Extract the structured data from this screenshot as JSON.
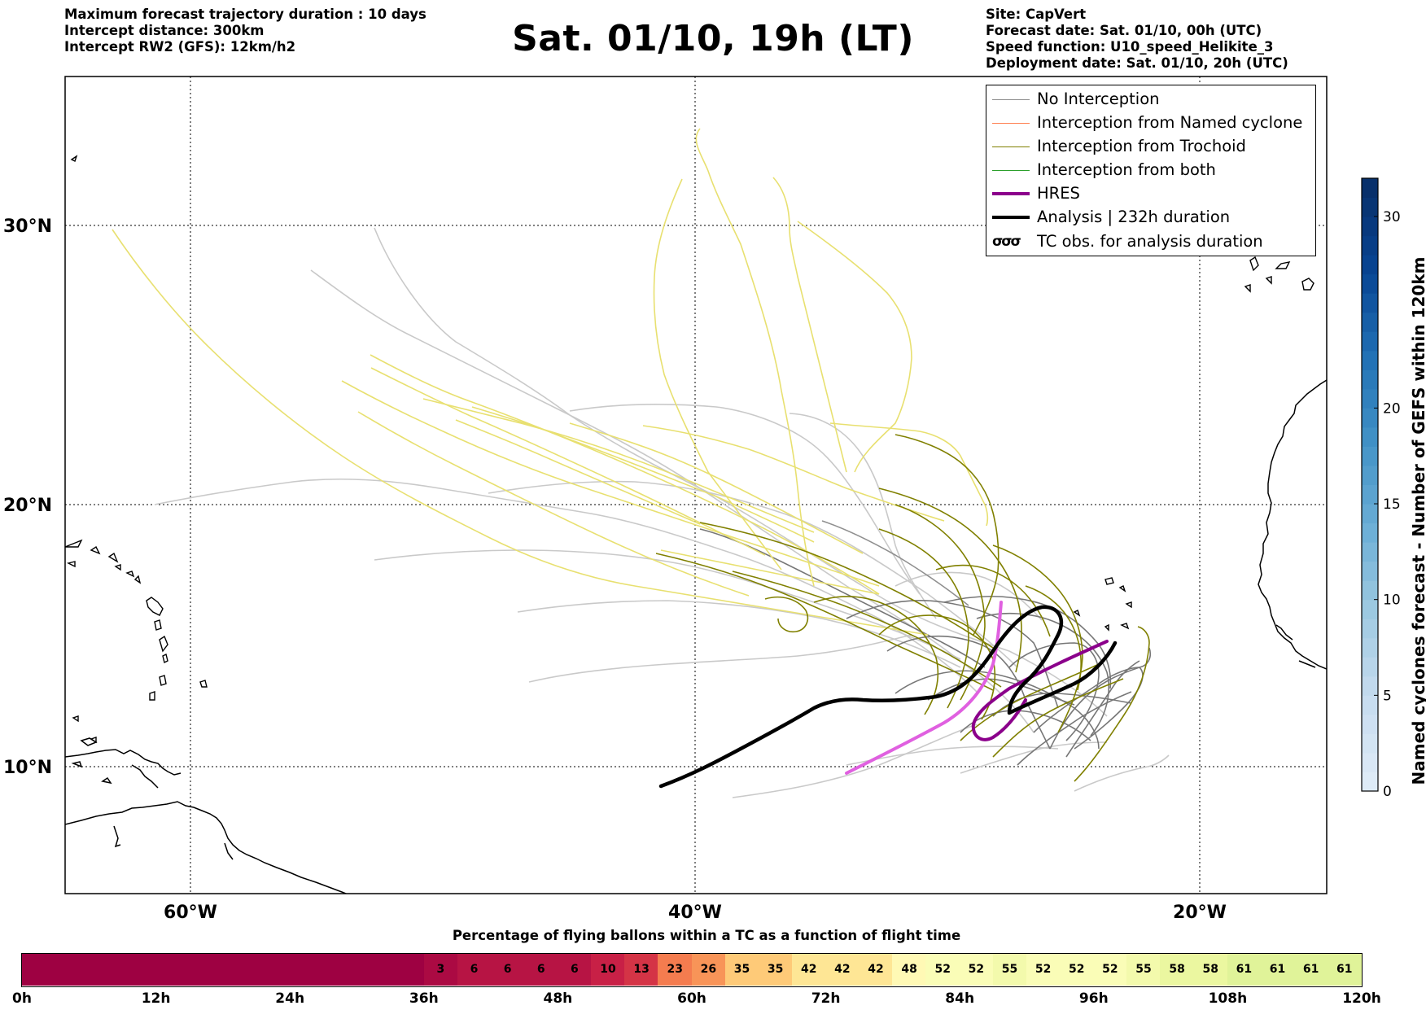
{
  "header_left": [
    "Maximum forecast trajectory duration : 10 days",
    "Intercept distance: 300km",
    "Intercept RW2 (GFS):  12km/h2"
  ],
  "title": "Sat. 01/10, 19h (LT)",
  "header_right": [
    "Site: CapVert",
    "Forecast date: Sat. 01/10, 00h (UTC)",
    "Speed function: U10_speed_Helikite_3",
    "Deployment date: Sat. 01/10, 20h (UTC)"
  ],
  "map": {
    "lat_labels": [
      "30°N",
      "20°N",
      "10°N"
    ],
    "lon_labels": [
      "60°W",
      "40°W",
      "20°W"
    ],
    "colors": {
      "no_interception": "#8c8c8c",
      "named_cyclone": "#ff7f50",
      "trochoid": "#808000",
      "both": "#2ca02c",
      "hres": "#8b008b",
      "analysis": "#000000"
    }
  },
  "legend": [
    {
      "label": "No Interception",
      "color": "#8c8c8c",
      "style": "line"
    },
    {
      "label": "Interception from Named cyclone",
      "color": "#ff7f50",
      "style": "line"
    },
    {
      "label": "Interception from Trochoid",
      "color": "#808000",
      "style": "line"
    },
    {
      "label": "Interception from both",
      "color": "#2ca02c",
      "style": "line"
    },
    {
      "label": "HRES",
      "color": "#8b008b",
      "style": "thick"
    },
    {
      "label": "Analysis | 232h duration",
      "color": "#000000",
      "style": "thick"
    },
    {
      "label": "TC obs. for analysis duration",
      "color": "#000000",
      "style": "swirl",
      "symbol": "σσσ"
    }
  ],
  "colorbar": {
    "title": "Named cyclones forecast - Number of GEFS within 120km",
    "ticks": [
      "0",
      "5",
      "10",
      "15",
      "20",
      "30"
    ],
    "tick_values": [
      0,
      5,
      10,
      15,
      20,
      30
    ],
    "max": 32
  },
  "flight_bar": {
    "title": "Percentage of flying ballons within a TC as a function of flight time",
    "tick_labels": [
      "0h",
      "12h",
      "24h",
      "36h",
      "48h",
      "60h",
      "72h",
      "84h",
      "96h",
      "108h",
      "120h"
    ],
    "values": [
      0,
      0,
      0,
      0,
      0,
      0,
      0,
      0,
      0,
      0,
      0,
      0,
      3,
      6,
      6,
      6,
      6,
      10,
      13,
      23,
      26,
      35,
      35,
      42,
      42,
      42,
      48,
      52,
      52,
      55,
      52,
      52,
      52,
      55,
      58,
      58,
      61,
      61,
      61,
      61
    ]
  }
}
